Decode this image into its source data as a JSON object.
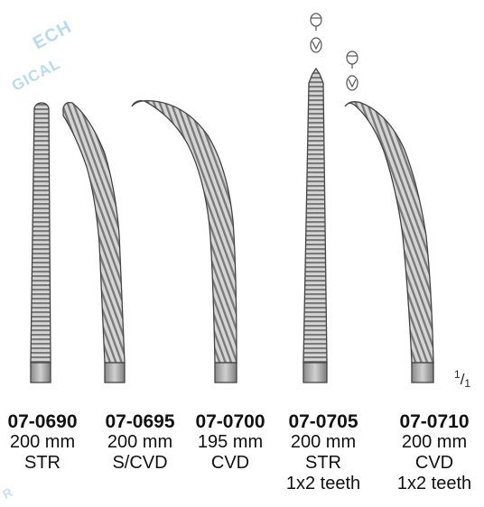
{
  "watermark": {
    "line1": "ECH",
    "line2": "GICAL",
    "line3": "R"
  },
  "scale_label": {
    "numerator": "1",
    "denominator": "1"
  },
  "instruments": [
    {
      "code": "07-0690",
      "length": "200 mm",
      "shape": "STR",
      "teeth": ""
    },
    {
      "code": "07-0695",
      "length": "200 mm",
      "shape": "S/CVD",
      "teeth": ""
    },
    {
      "code": "07-0700",
      "length": "195 mm",
      "shape": "CVD",
      "teeth": ""
    },
    {
      "code": "07-0705",
      "length": "200 mm",
      "shape": "STR",
      "teeth": "1x2 teeth"
    },
    {
      "code": "07-0710",
      "length": "200 mm",
      "shape": "CVD",
      "teeth": "1x2 teeth"
    }
  ],
  "colors": {
    "metal_light": "#d9d9d9",
    "metal_mid": "#9a9a9a",
    "metal_dark": "#555555",
    "watermark": "#9fd0ea"
  }
}
